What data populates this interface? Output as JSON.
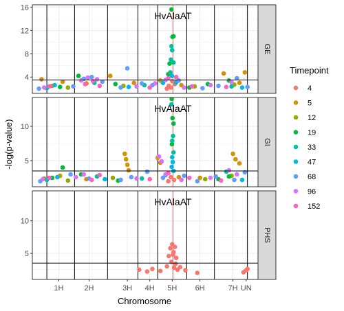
{
  "chart_data": {
    "type": "scatter",
    "title": "",
    "xlabel": "Chromosome",
    "ylabel": "-log(p-value)",
    "x_tick_labels": [
      "1H",
      "2H",
      "3H",
      "4H",
      "5H",
      "6H",
      "7H",
      "UN"
    ],
    "x_tick_positions": [
      0.45,
      1.6,
      3.05,
      3.9,
      4.75,
      5.8,
      7.05,
      7.55
    ],
    "chromosome_boundaries": [
      0.0,
      1.05,
      2.3,
      3.45,
      4.2,
      5.3,
      6.35,
      7.6
    ],
    "xlim": [
      -0.55,
      8.0
    ],
    "gene_marker_x": 4.78,
    "threshold": 3.5,
    "grid": true,
    "legend": {
      "title": "Timepoint",
      "placement": "right",
      "items": [
        {
          "label": "4",
          "color": "#F8766D"
        },
        {
          "label": "5",
          "color": "#D39200"
        },
        {
          "label": "12",
          "color": "#93AA00"
        },
        {
          "label": "19",
          "color": "#00BA38"
        },
        {
          "label": "33",
          "color": "#00C19F"
        },
        {
          "label": "47",
          "color": "#00B9E3"
        },
        {
          "label": "68",
          "color": "#619CFF"
        },
        {
          "label": "96",
          "color": "#DB72FB"
        },
        {
          "label": "152",
          "color": "#FF61C3"
        }
      ]
    },
    "panels": [
      {
        "strip": "GE",
        "annotation": "HvAlaAT",
        "ylim": [
          1.2,
          16.4
        ],
        "y_ticks": [
          4,
          8,
          12,
          16
        ],
        "y_tick_labels": [
          "4",
          "8",
          "12",
          "16"
        ],
        "series": [
          {
            "name": "4",
            "x": [
              4.62,
              4.75,
              4.7,
              4.85,
              4.55
            ],
            "y": [
              2.5,
              3.3,
              2.2,
              2.8,
              2.0
            ]
          },
          {
            "name": "5",
            "x": [
              -0.2,
              0.2,
              0.6,
              1.5,
              2.4,
              3.3,
              4.3,
              5.1,
              6.7,
              7.3,
              7.5
            ],
            "y": [
              3.6,
              2.5,
              3.2,
              2.9,
              4.2,
              3.0,
              3.4,
              2.6,
              4.6,
              3.0,
              4.8
            ]
          },
          {
            "name": "12",
            "x": [
              0.8,
              2.9,
              5.6,
              7.1
            ],
            "y": [
              2.2,
              2.5,
              2.4,
              2.7
            ]
          },
          {
            "name": "19",
            "x": [
              0.5,
              1.2,
              2.6,
              4.6,
              4.72,
              4.8,
              4.76,
              4.65,
              6.1,
              6.9,
              5.4
            ],
            "y": [
              2.3,
              4.2,
              2.8,
              4.5,
              15.6,
              11.0,
              10.9,
              6.3,
              2.8,
              3.4,
              2.2
            ]
          },
          {
            "name": "33",
            "x": [
              0.0,
              1.8,
              3.7,
              4.68,
              4.72,
              4.75,
              4.8,
              4.7,
              7.0
            ],
            "y": [
              2.1,
              3.0,
              2.6,
              4.8,
              9.3,
              8.6,
              6.5,
              7.0,
              2.4
            ]
          },
          {
            "name": "47",
            "x": [
              0.3,
              3.1,
              4.4,
              4.74,
              4.9,
              7.4
            ],
            "y": [
              2.6,
              2.3,
              3.0,
              4.2,
              3.1,
              2.2
            ]
          },
          {
            "name": "68",
            "x": [
              -0.3,
              1.0,
              1.4,
              1.7,
              2.1,
              2.8,
              3.05,
              3.6,
              4.0,
              5.0,
              5.9,
              6.5,
              7.2,
              7.6
            ],
            "y": [
              2.0,
              2.4,
              3.7,
              4.0,
              3.2,
              2.2,
              5.5,
              2.9,
              2.6,
              3.4,
              2.1,
              2.5,
              3.8,
              2.3
            ]
          },
          {
            "name": "96",
            "x": [
              -0.1,
              1.3,
              1.55,
              1.9,
              3.4,
              4.1,
              4.5,
              5.2,
              6.2,
              7.0
            ],
            "y": [
              2.2,
              3.4,
              3.9,
              3.6,
              2.4,
              2.9,
              3.5,
              2.2,
              2.6,
              3.1
            ]
          },
          {
            "name": "152",
            "x": [
              0.1,
              1.45,
              1.75,
              2.0,
              3.9,
              4.6,
              4.9,
              5.5,
              6.8
            ],
            "y": [
              2.4,
              2.8,
              3.3,
              2.5,
              2.2,
              3.8,
              4.0,
              2.4,
              2.3
            ]
          }
        ]
      },
      {
        "strip": "GI",
        "annotation": "HvAlaAT",
        "ylim": [
          1.2,
          14.2
        ],
        "y_ticks": [
          5,
          10
        ],
        "y_tick_labels": [
          "5",
          "10"
        ],
        "series": [
          {
            "name": "4",
            "x": [
              4.7,
              4.82,
              4.6
            ],
            "y": [
              2.6,
              2.2,
              2.0
            ]
          },
          {
            "name": "5",
            "x": [
              -0.1,
              0.5,
              1.5,
              2.95,
              3.0,
              3.05,
              3.1,
              4.2,
              4.3,
              5.0,
              5.8,
              7.05,
              7.15,
              7.3
            ],
            "y": [
              2.4,
              2.8,
              2.3,
              6.0,
              5.2,
              4.4,
              3.6,
              5.4,
              4.7,
              2.6,
              2.5,
              6.0,
              5.2,
              4.6
            ]
          },
          {
            "name": "12",
            "x": [
              0.8,
              2.5,
              6.0,
              7.0
            ],
            "y": [
              2.1,
              2.5,
              2.3,
              2.8
            ]
          },
          {
            "name": "19",
            "x": [
              0.2,
              0.6,
              1.3,
              2.7,
              4.73,
              4.76,
              4.8,
              4.74,
              6.5,
              6.9
            ],
            "y": [
              2.5,
              4.0,
              3.0,
              2.1,
              14.0,
              11.2,
              10.4,
              7.4,
              2.3,
              2.7
            ]
          },
          {
            "name": "33",
            "x": [
              0.0,
              1.9,
              3.6,
              4.72,
              4.78,
              4.75,
              4.8,
              6.8
            ],
            "y": [
              2.2,
              2.7,
              2.4,
              13.2,
              8.6,
              7.9,
              6.2,
              3.4
            ]
          },
          {
            "name": "47",
            "x": [
              0.4,
              2.2,
              4.5,
              4.75,
              4.77,
              4.73,
              4.8,
              7.4
            ],
            "y": [
              2.6,
              2.3,
              2.9,
              5.5,
              4.8,
              4.1,
              3.5,
              2.2
            ]
          },
          {
            "name": "68",
            "x": [
              -0.25,
              0.9,
              1.6,
              2.8,
              3.2,
              3.8,
              4.4,
              5.2,
              5.7,
              6.4,
              7.1,
              7.5
            ],
            "y": [
              2.0,
              3.0,
              2.4,
              2.2,
              2.6,
              3.4,
              2.5,
              2.8,
              2.0,
              2.7,
              2.2,
              3.3
            ]
          },
          {
            "name": "96",
            "x": [
              -0.15,
              1.1,
              1.4,
              3.4,
              4.25,
              4.35,
              4.5,
              5.1,
              6.2,
              6.9,
              7.2
            ],
            "y": [
              2.3,
              2.6,
              3.0,
              2.4,
              5.6,
              4.9,
              3.0,
              2.2,
              2.5,
              3.6,
              3.0
            ]
          },
          {
            "name": "152",
            "x": [
              0.1,
              1.7,
              2.0,
              3.9,
              4.6,
              5.4,
              6.6
            ],
            "y": [
              2.5,
              2.2,
              2.9,
              2.3,
              3.2,
              2.5,
              2.1
            ]
          }
        ]
      },
      {
        "strip": "PHS",
        "annotation": "HvAlaAT",
        "ylim": [
          1.0,
          14.6
        ],
        "y_ticks": [
          5,
          10
        ],
        "y_tick_labels": [
          "5",
          "10"
        ],
        "series": [
          {
            "name": "4",
            "x": [
              3.5,
              3.8,
              4.0,
              4.3,
              4.55,
              4.62,
              4.68,
              4.72,
              4.75,
              4.78,
              4.8,
              4.82,
              4.85,
              4.88,
              4.9,
              4.95,
              5.05,
              5.25,
              5.7,
              7.45,
              7.55,
              7.6
            ],
            "y": [
              2.5,
              2.2,
              2.6,
              2.3,
              3.0,
              4.6,
              5.8,
              3.7,
              6.4,
              4.8,
              5.2,
              2.8,
              6.0,
              3.4,
              4.3,
              2.5,
              2.9,
              2.4,
              2.0,
              2.1,
              2.4,
              2.6
            ]
          }
        ]
      }
    ]
  }
}
